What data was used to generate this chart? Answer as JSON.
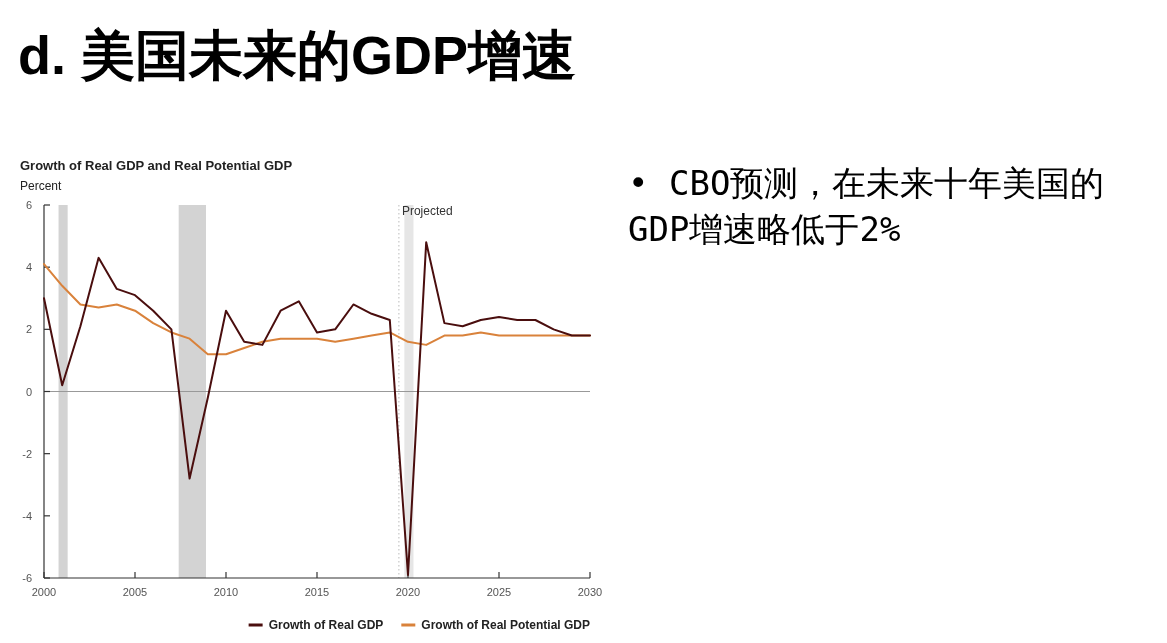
{
  "chart_data": {
    "type": "line",
    "title": "d. 美国未来的GDP增速",
    "subtitle": "Growth of Real GDP and Real Potential GDP",
    "ylabel": "Percent",
    "annotations": [
      "• CBO预测，在未来十年美国的\nGDP增速略低于2%"
    ],
    "x": [
      2000,
      2001,
      2002,
      2003,
      2004,
      2005,
      2006,
      2007,
      2008,
      2009,
      2010,
      2011,
      2012,
      2013,
      2014,
      2015,
      2016,
      2017,
      2018,
      2019,
      2020,
      2021,
      2022,
      2023,
      2024,
      2025,
      2026,
      2027,
      2028,
      2029,
      2030
    ],
    "series": [
      {
        "name": "Growth of Real GDP",
        "color": "#4a0e0e",
        "values": [
          3.0,
          0.2,
          2.1,
          4.3,
          3.3,
          3.1,
          2.6,
          2.0,
          -2.8,
          -0.2,
          2.6,
          1.6,
          1.5,
          2.6,
          2.9,
          1.9,
          2.0,
          2.8,
          2.5,
          2.3,
          -5.9,
          4.8,
          2.2,
          2.1,
          2.3,
          2.4,
          2.3,
          2.3,
          2.0,
          1.8,
          1.8
        ]
      },
      {
        "name": "Growth of Real Potential GDP",
        "color": "#d9823b",
        "values": [
          4.1,
          3.4,
          2.8,
          2.7,
          2.8,
          2.6,
          2.2,
          1.9,
          1.7,
          1.2,
          1.2,
          1.4,
          1.6,
          1.7,
          1.7,
          1.7,
          1.6,
          1.7,
          1.8,
          1.9,
          1.6,
          1.5,
          1.8,
          1.8,
          1.9,
          1.8,
          1.8,
          1.8,
          1.8,
          1.8,
          1.8
        ]
      }
    ],
    "xlim": [
      2000,
      2030
    ],
    "ylim": [
      -6,
      6
    ],
    "xticks": [
      2000,
      2005,
      2010,
      2015,
      2020,
      2025,
      2030
    ],
    "yticks": [
      -6,
      -4,
      -2,
      0,
      2,
      4,
      6
    ],
    "bands": [
      {
        "axis": "x",
        "from": 2000.8,
        "to": 2001.3,
        "color": "#d3d3d3"
      },
      {
        "axis": "x",
        "from": 2007.4,
        "to": 2008.9,
        "color": "#d3d3d3"
      },
      {
        "axis": "x",
        "from": 2019.8,
        "to": 2020.3,
        "color": "#e6e6e6"
      }
    ],
    "ref_lines": [
      {
        "axis": "y",
        "value": 0,
        "color": "#999999",
        "line_style": "solid"
      },
      {
        "axis": "x",
        "value": 2019.5,
        "label": "Projected",
        "color": "#bbbbbb",
        "line_style": "dotted"
      }
    ],
    "legend": "bottom right",
    "grid": false
  }
}
